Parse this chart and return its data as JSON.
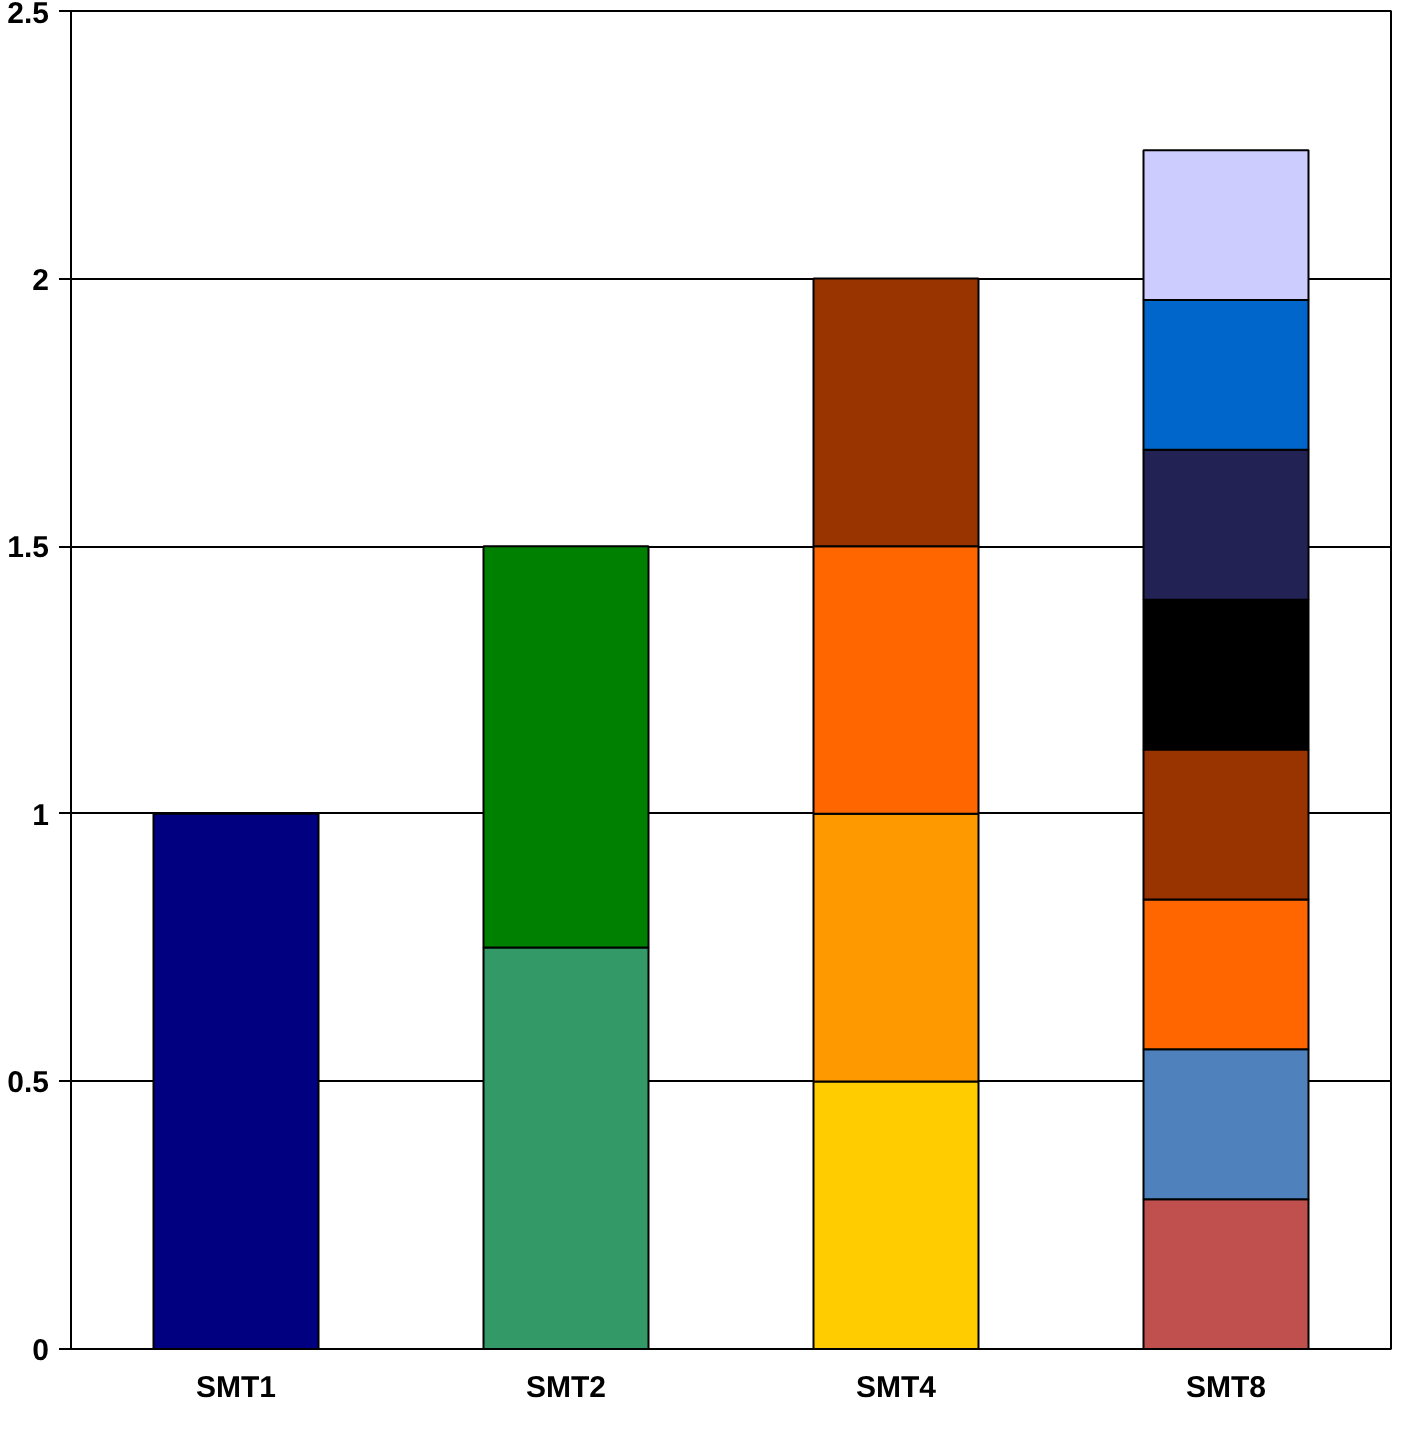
{
  "chart_data": {
    "type": "bar",
    "stacked": true,
    "categories": [
      "SMT1",
      "SMT2",
      "SMT4",
      "SMT8"
    ],
    "ylim": [
      0,
      2.5
    ],
    "yticks": [
      0,
      0.5,
      1,
      1.5,
      2,
      2.5
    ],
    "grid": "y",
    "series": [
      {
        "values": [
          1,
          0.75,
          0.5,
          0.28
        ],
        "colors": [
          "#000080",
          "#339966",
          "#ffcc00",
          "#c0504d"
        ]
      },
      {
        "values": [
          null,
          0.75,
          0.5,
          0.28
        ],
        "colors": [
          null,
          "#008000",
          "#ff9900",
          "#4f81bd"
        ]
      },
      {
        "values": [
          null,
          null,
          0.5,
          0.28
        ],
        "colors": [
          null,
          null,
          "#ff6600",
          "#ff6600"
        ]
      },
      {
        "values": [
          null,
          null,
          0.5,
          0.28
        ],
        "colors": [
          null,
          null,
          "#993300",
          "#993300"
        ]
      },
      {
        "values": [
          null,
          null,
          null,
          0.28
        ],
        "colors": [
          null,
          null,
          null,
          "#000000"
        ]
      },
      {
        "values": [
          null,
          null,
          null,
          0.28
        ],
        "colors": [
          null,
          null,
          null,
          "#222255"
        ]
      },
      {
        "values": [
          null,
          null,
          null,
          0.28
        ],
        "colors": [
          null,
          null,
          null,
          "#0066cc"
        ]
      },
      {
        "values": [
          null,
          null,
          null,
          0.28
        ],
        "colors": [
          null,
          null,
          null,
          "#ccccff"
        ]
      }
    ]
  }
}
